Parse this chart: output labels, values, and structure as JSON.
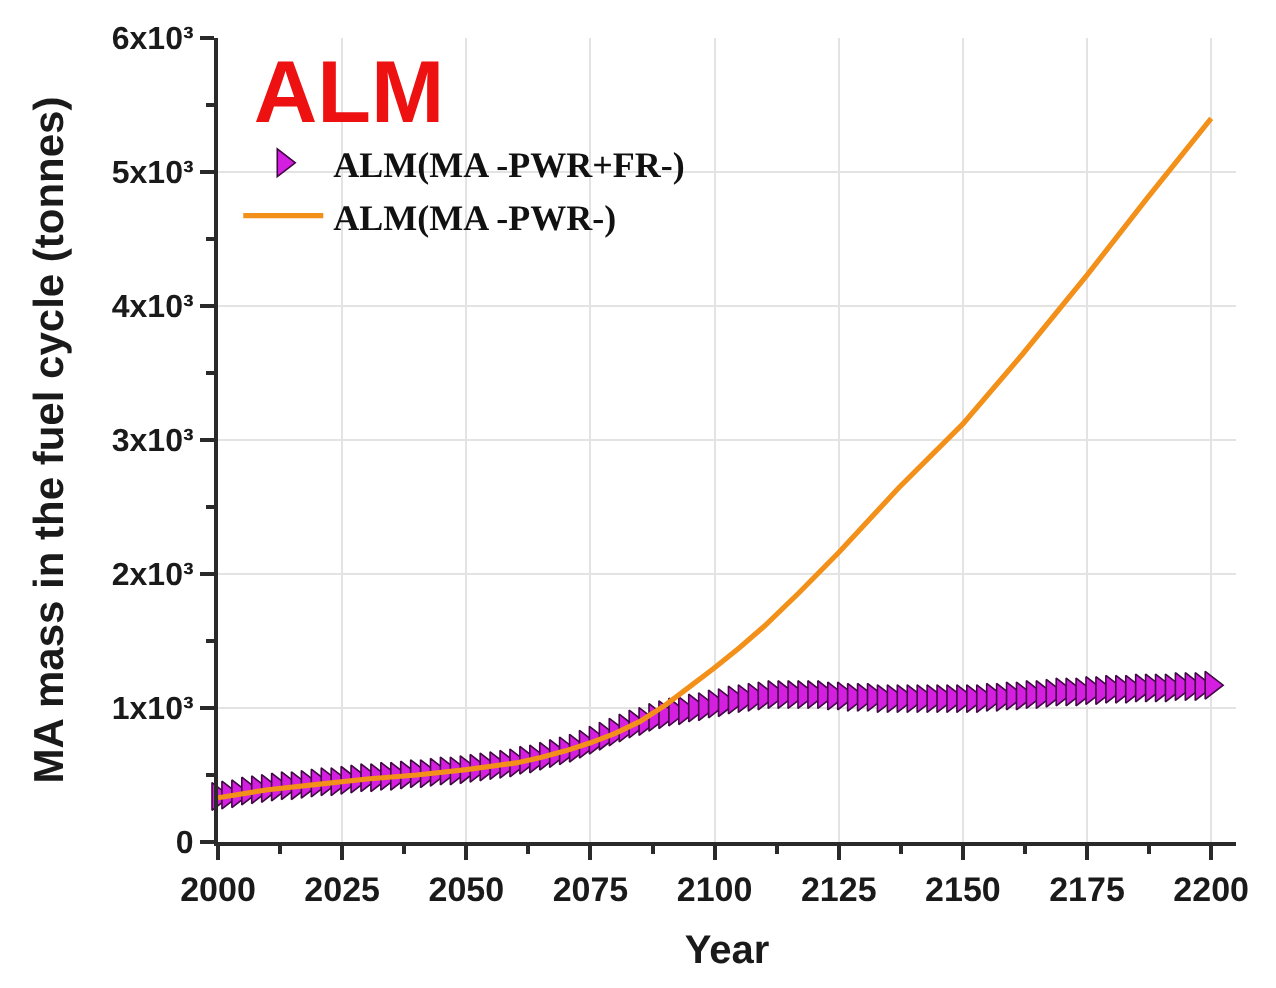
{
  "chart_data": {
    "type": "line",
    "title": "ALM",
    "xlabel": "Year",
    "ylabel": "MA mass in the fuel cycle (tonnes)",
    "xlim": [
      2000,
      2205
    ],
    "xticks": [
      2000,
      {
        "value": 2012.5,
        "label": null
      },
      2025,
      {
        "value": 2037.5,
        "label": null
      },
      2050,
      {
        "value": 2062.5,
        "label": null
      },
      2075,
      {
        "value": 2087.5,
        "label": null
      },
      2100,
      {
        "value": 2112.5,
        "label": null
      },
      2125,
      {
        "value": 2137.5,
        "label": null
      },
      2150,
      {
        "value": 2162.5,
        "label": null
      },
      2175,
      {
        "value": 2187.5,
        "label": null
      },
      2200
    ],
    "ylim": [
      0,
      6000
    ],
    "yticks": [
      0,
      {
        "value": 500,
        "label": null
      },
      {
        "value": 1000,
        "label": "1x10³"
      },
      {
        "value": 1500,
        "label": null
      },
      {
        "value": 2000,
        "label": "2x10³"
      },
      {
        "value": 2500,
        "label": null
      },
      {
        "value": 3000,
        "label": "3x10³"
      },
      {
        "value": 3500,
        "label": null
      },
      {
        "value": 4000,
        "label": "4x10³"
      },
      {
        "value": 4500,
        "label": null
      },
      {
        "value": 5000,
        "label": "5x10³"
      },
      {
        "value": 5500,
        "label": null
      },
      {
        "value": 6000,
        "label": "6x10³"
      }
    ],
    "grid": true,
    "legend": "top left",
    "series": [
      {
        "name": "ALM(MA -PWR+FR-)",
        "type": "scatter",
        "color": "#d41ee0",
        "marker": "triangle",
        "x": [
          2000,
          2002,
          2004,
          2006,
          2008,
          2010,
          2012,
          2014,
          2016,
          2018,
          2020,
          2022,
          2024,
          2026,
          2028,
          2030,
          2032,
          2034,
          2036,
          2038,
          2040,
          2042,
          2044,
          2046,
          2048,
          2050,
          2052,
          2054,
          2056,
          2058,
          2060,
          2062,
          2064,
          2066,
          2068,
          2070,
          2072,
          2074,
          2076,
          2078,
          2080,
          2082,
          2084,
          2086,
          2088,
          2090,
          2092,
          2094,
          2096,
          2098,
          2100,
          2102,
          2104,
          2106,
          2108,
          2110,
          2112,
          2114,
          2116,
          2118,
          2120,
          2122,
          2124,
          2126,
          2128,
          2130,
          2132,
          2134,
          2136,
          2138,
          2140,
          2142,
          2144,
          2146,
          2148,
          2150,
          2152,
          2154,
          2156,
          2158,
          2160,
          2162,
          2164,
          2166,
          2168,
          2170,
          2172,
          2174,
          2176,
          2178,
          2180,
          2182,
          2184,
          2186,
          2188,
          2190,
          2192,
          2194,
          2196,
          2198,
          2200
        ],
        "values": [
          340,
          350,
          360,
          380,
          390,
          400,
          410,
          420,
          420,
          430,
          440,
          450,
          450,
          460,
          470,
          480,
          480,
          490,
          490,
          500,
          510,
          510,
          520,
          530,
          530,
          540,
          550,
          560,
          570,
          580,
          590,
          610,
          620,
          640,
          660,
          680,
          700,
          730,
          760,
          790,
          820,
          850,
          880,
          900,
          930,
          950,
          970,
          980,
          1000,
          1010,
          1030,
          1040,
          1060,
          1070,
          1080,
          1090,
          1100,
          1100,
          1100,
          1100,
          1100,
          1100,
          1090,
          1090,
          1080,
          1080,
          1080,
          1070,
          1070,
          1070,
          1070,
          1070,
          1070,
          1070,
          1070,
          1070,
          1070,
          1070,
          1080,
          1080,
          1090,
          1090,
          1100,
          1100,
          1110,
          1120,
          1120,
          1120,
          1130,
          1130,
          1140,
          1140,
          1140,
          1150,
          1150,
          1150,
          1150,
          1160,
          1160,
          1160,
          1170
        ]
      },
      {
        "name": "ALM(MA -PWR-)",
        "color": "#f39019",
        "marker": "none",
        "x": [
          2000,
          2010,
          2020,
          2030,
          2040,
          2050,
          2060,
          2065,
          2070,
          2075,
          2080,
          2085,
          2090,
          2095,
          2100,
          2105,
          2110,
          2117,
          2125,
          2137,
          2150,
          2162,
          2175,
          2187,
          2200
        ],
        "values": [
          330,
          390,
          430,
          470,
          500,
          540,
          590,
          630,
          680,
          740,
          810,
          900,
          1020,
          1160,
          1300,
          1450,
          1610,
          1860,
          2160,
          2640,
          3120,
          3640,
          4230,
          4800,
          5400
        ]
      }
    ]
  }
}
